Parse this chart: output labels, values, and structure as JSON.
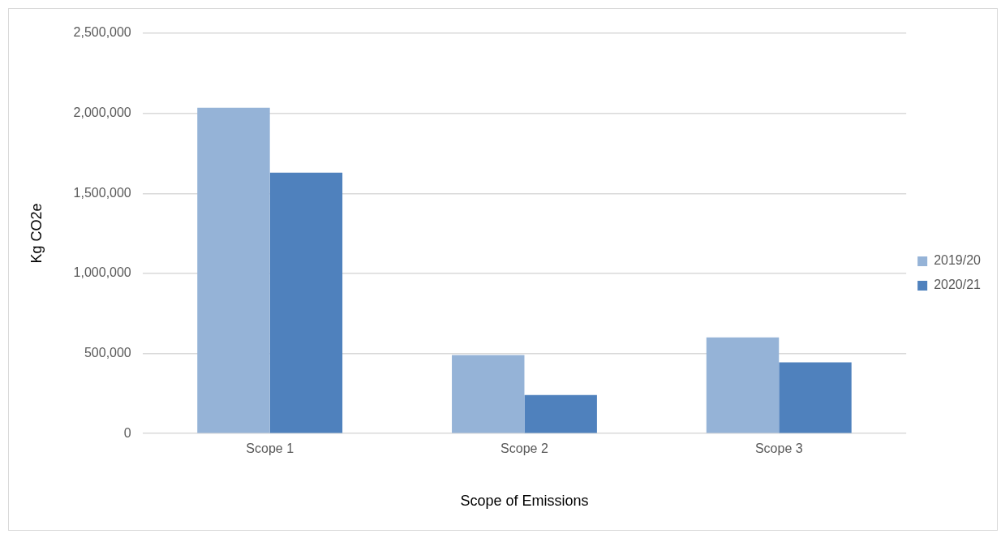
{
  "chart_data": {
    "type": "bar",
    "xlabel": "Scope of Emissions",
    "ylabel": "Kg CO2e",
    "categories": [
      "Scope 1",
      "Scope 2",
      "Scope 3"
    ],
    "series": [
      {
        "name": "2019/20",
        "color": "#95b3d7",
        "values": [
          2035000,
          490000,
          600000
        ]
      },
      {
        "name": "2020/21",
        "color": "#4f81bd",
        "values": [
          1630000,
          240000,
          445000
        ]
      }
    ],
    "ylim": [
      0,
      2500000
    ],
    "yticks": [
      {
        "value": 0,
        "label": "0"
      },
      {
        "value": 500000,
        "label": "500,000"
      },
      {
        "value": 1000000,
        "label": "1,000,000"
      },
      {
        "value": 1500000,
        "label": "1,500,000"
      },
      {
        "value": 2000000,
        "label": "2,000,000"
      },
      {
        "value": 2500000,
        "label": "2,500,000"
      }
    ],
    "grid": "y",
    "legend": "right"
  }
}
